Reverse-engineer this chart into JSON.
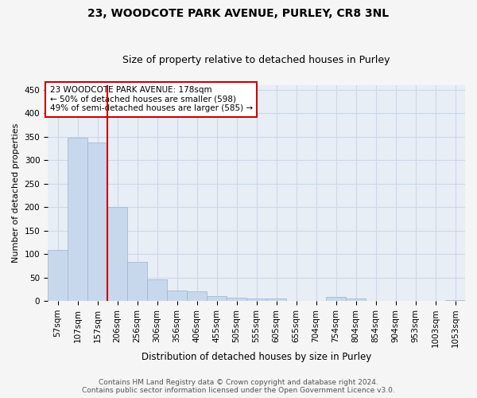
{
  "title": "23, WOODCOTE PARK AVENUE, PURLEY, CR8 3NL",
  "subtitle": "Size of property relative to detached houses in Purley",
  "xlabel": "Distribution of detached houses by size in Purley",
  "ylabel": "Number of detached properties",
  "footer_line1": "Contains HM Land Registry data © Crown copyright and database right 2024.",
  "footer_line2": "Contains public sector information licensed under the Open Government Licence v3.0.",
  "annotation_line1": "23 WOODCOTE PARK AVENUE: 178sqm",
  "annotation_line2": "← 50% of detached houses are smaller (598)",
  "annotation_line3": "49% of semi-detached houses are larger (585) →",
  "bar_color": "#c8d8ec",
  "bar_edge_color": "#9ab4cc",
  "vline_color": "#cc0000",
  "annotation_box_facecolor": "#ffffff",
  "annotation_box_edgecolor": "#cc0000",
  "grid_color": "#ccd8e8",
  "plot_bg_color": "#e8eef6",
  "fig_bg_color": "#f5f5f5",
  "categories": [
    "57sqm",
    "107sqm",
    "157sqm",
    "206sqm",
    "256sqm",
    "306sqm",
    "356sqm",
    "406sqm",
    "455sqm",
    "505sqm",
    "555sqm",
    "605sqm",
    "655sqm",
    "704sqm",
    "754sqm",
    "804sqm",
    "854sqm",
    "904sqm",
    "953sqm",
    "1003sqm",
    "1053sqm"
  ],
  "values": [
    109,
    347,
    337,
    201,
    83,
    46,
    23,
    20,
    10,
    7,
    6,
    6,
    1,
    1,
    8,
    6,
    1,
    0,
    1,
    0,
    2
  ],
  "ylim": [
    0,
    460
  ],
  "yticks": [
    0,
    50,
    100,
    150,
    200,
    250,
    300,
    350,
    400,
    450
  ],
  "vline_x_index": 2.5,
  "title_fontsize": 10,
  "subtitle_fontsize": 9,
  "ylabel_fontsize": 8,
  "xlabel_fontsize": 8.5,
  "tick_fontsize": 7.5,
  "annotation_fontsize": 7.5,
  "footer_fontsize": 6.5
}
